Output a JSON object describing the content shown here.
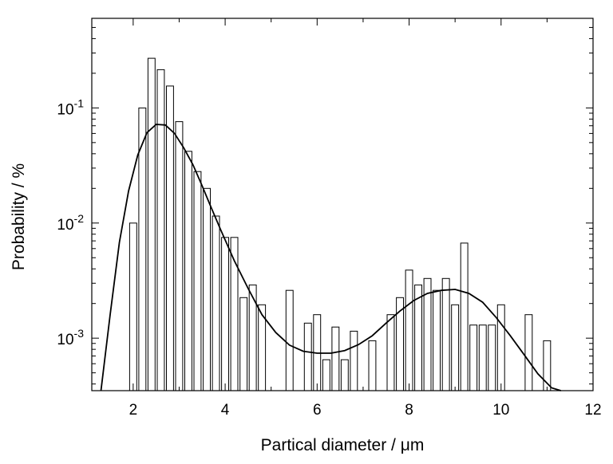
{
  "chart_data": {
    "type": "bar",
    "xlabel": "Partical diameter / μm",
    "ylabel": "Probability / %",
    "xlim": [
      1.1,
      12
    ],
    "ylim": [
      0.00035,
      0.6
    ],
    "y_scale": "log",
    "x_ticks": [
      2,
      4,
      6,
      8,
      10,
      12
    ],
    "y_ticks": [
      {
        "value": 0.1,
        "base": "10",
        "exp": "-1"
      },
      {
        "value": 0.01,
        "base": "10",
        "exp": "-2"
      },
      {
        "value": 0.001,
        "base": "10",
        "exp": "-3"
      }
    ],
    "grid": false,
    "bar_width": 0.155,
    "series": [
      {
        "type": "bar",
        "x": [
          2.0,
          2.2,
          2.4,
          2.6,
          2.8,
          3.0,
          3.2,
          3.4,
          3.6,
          3.8,
          4.0,
          4.2,
          4.4,
          4.6,
          4.8,
          5.4,
          5.8,
          6.0,
          6.2,
          6.4,
          6.6,
          6.8,
          7.2,
          7.6,
          7.8,
          8.0,
          8.2,
          8.4,
          8.6,
          8.8,
          9.0,
          9.2,
          9.4,
          9.6,
          9.8,
          10.0,
          10.6,
          11.0
        ],
        "values": [
          0.01,
          0.1,
          0.27,
          0.215,
          0.155,
          0.076,
          0.042,
          0.028,
          0.02,
          0.0115,
          0.0075,
          0.0075,
          0.00225,
          0.0029,
          0.00195,
          0.0026,
          0.00135,
          0.0016,
          0.00065,
          0.00125,
          0.00065,
          0.00115,
          0.00095,
          0.0016,
          0.00225,
          0.0039,
          0.0029,
          0.0033,
          0.0026,
          0.0033,
          0.00195,
          0.0067,
          0.0013,
          0.0013,
          0.0013,
          0.00195,
          0.0016,
          0.00095
        ]
      },
      {
        "type": "line",
        "x": [
          1.3,
          1.5,
          1.7,
          1.9,
          2.1,
          2.3,
          2.5,
          2.7,
          2.9,
          3.1,
          3.3,
          3.5,
          3.7,
          3.9,
          4.2,
          4.5,
          4.8,
          5.1,
          5.4,
          5.7,
          6.0,
          6.3,
          6.6,
          6.9,
          7.2,
          7.5,
          7.8,
          8.1,
          8.4,
          8.7,
          9.0,
          9.3,
          9.6,
          9.9,
          10.2,
          10.5,
          10.8,
          11.1,
          11.3
        ],
        "values": [
          0.00034,
          0.0016,
          0.0068,
          0.019,
          0.039,
          0.061,
          0.072,
          0.071,
          0.06,
          0.045,
          0.032,
          0.021,
          0.0135,
          0.0088,
          0.0047,
          0.0027,
          0.0016,
          0.00112,
          0.00087,
          0.00077,
          0.00074,
          0.00074,
          0.00078,
          0.00088,
          0.00105,
          0.00135,
          0.00172,
          0.00212,
          0.00245,
          0.0026,
          0.00265,
          0.00245,
          0.00205,
          0.0015,
          0.00105,
          0.00072,
          0.00049,
          0.00037,
          0.00032
        ]
      }
    ]
  }
}
